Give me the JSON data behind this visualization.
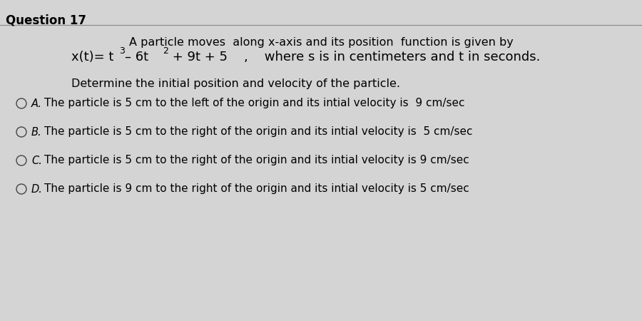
{
  "title": "Question 17",
  "background_color": "#d4d4d4",
  "line1": "A particle moves  along x-axis and its position  function is given by",
  "line3": "Determine the initial position and velocity of the particle.",
  "eq_suffix": " + 9t + 5    ,    where s is in centimeters and t in seconds.",
  "optA": "The particle is 5 cm to the left of the origin and its intial velocity is  9 cm/sec",
  "optB": "The particle is 5 cm to the right of the origin and its intial velocity is  5 cm/sec",
  "optC": "The particle is 5 cm to the right of the origin and its intial velocity is 9 cm/sec",
  "optD": "The particle is 9 cm to the right of the origin and its intial velocity is 5 cm/sec",
  "label_A": "A.",
  "label_B": "B.",
  "label_C": "C.",
  "label_D": "D.",
  "title_fontsize": 12,
  "body_fontsize": 11.5,
  "eq_fontsize": 13,
  "sup_fontsize": 9,
  "option_fontsize": 11
}
